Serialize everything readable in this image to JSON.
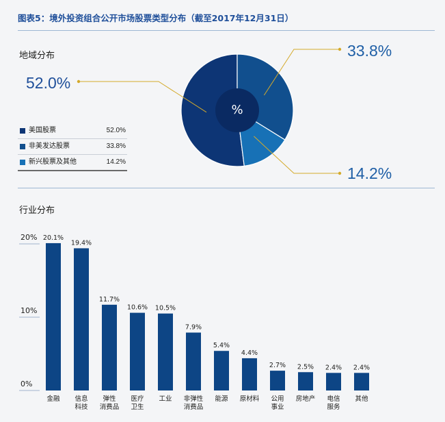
{
  "title": "图表5：境外投资组合公开市场股票类型分布（截至2017年12月31日）",
  "colors": {
    "title": "#1f4f9a",
    "pie_us": "#0d3575",
    "pie_developed": "#114f8e",
    "pie_emerging": "#1771b6",
    "pie_center": "#0a2a62",
    "bar": "#0d4585",
    "leader": "#d4aa2b",
    "accent_text": "#1f5fa6",
    "rule": "#9db7d3"
  },
  "chart_data": [
    {
      "type": "pie",
      "title": "地域分布",
      "center_label": "%",
      "slices": [
        {
          "label": "美国股票",
          "value": 52.0,
          "display": "52.0%"
        },
        {
          "label": "非美发达股票",
          "value": 33.8,
          "display": "33.8%"
        },
        {
          "label": "新兴股票及其他",
          "value": 14.2,
          "display": "14.2%"
        }
      ]
    },
    {
      "type": "bar",
      "title": "行业分布",
      "categories": [
        [
          "金融"
        ],
        [
          "信息",
          "科技"
        ],
        [
          "弹性",
          "消费品"
        ],
        [
          "医疗",
          "卫生"
        ],
        [
          "工业"
        ],
        [
          "非弹性",
          "消费品"
        ],
        [
          "能源"
        ],
        [
          "原材料"
        ],
        [
          "公用",
          "事业"
        ],
        [
          "房地产"
        ],
        [
          "电信",
          "服务"
        ],
        [
          "其他"
        ]
      ],
      "values": [
        20.1,
        19.4,
        11.7,
        10.6,
        10.5,
        7.9,
        5.4,
        4.4,
        2.7,
        2.5,
        2.4,
        2.4
      ],
      "value_labels": [
        "20.1%",
        "19.4%",
        "11.7%",
        "10.6%",
        "10.5%",
        "7.9%",
        "5.4%",
        "4.4%",
        "2.7%",
        "2.5%",
        "2.4%",
        "2.4%"
      ],
      "yticks": [
        0,
        10,
        20
      ],
      "ytick_labels": [
        "0%",
        "10%",
        "20%"
      ],
      "ylim": [
        0,
        20.1
      ],
      "grid": false
    }
  ]
}
